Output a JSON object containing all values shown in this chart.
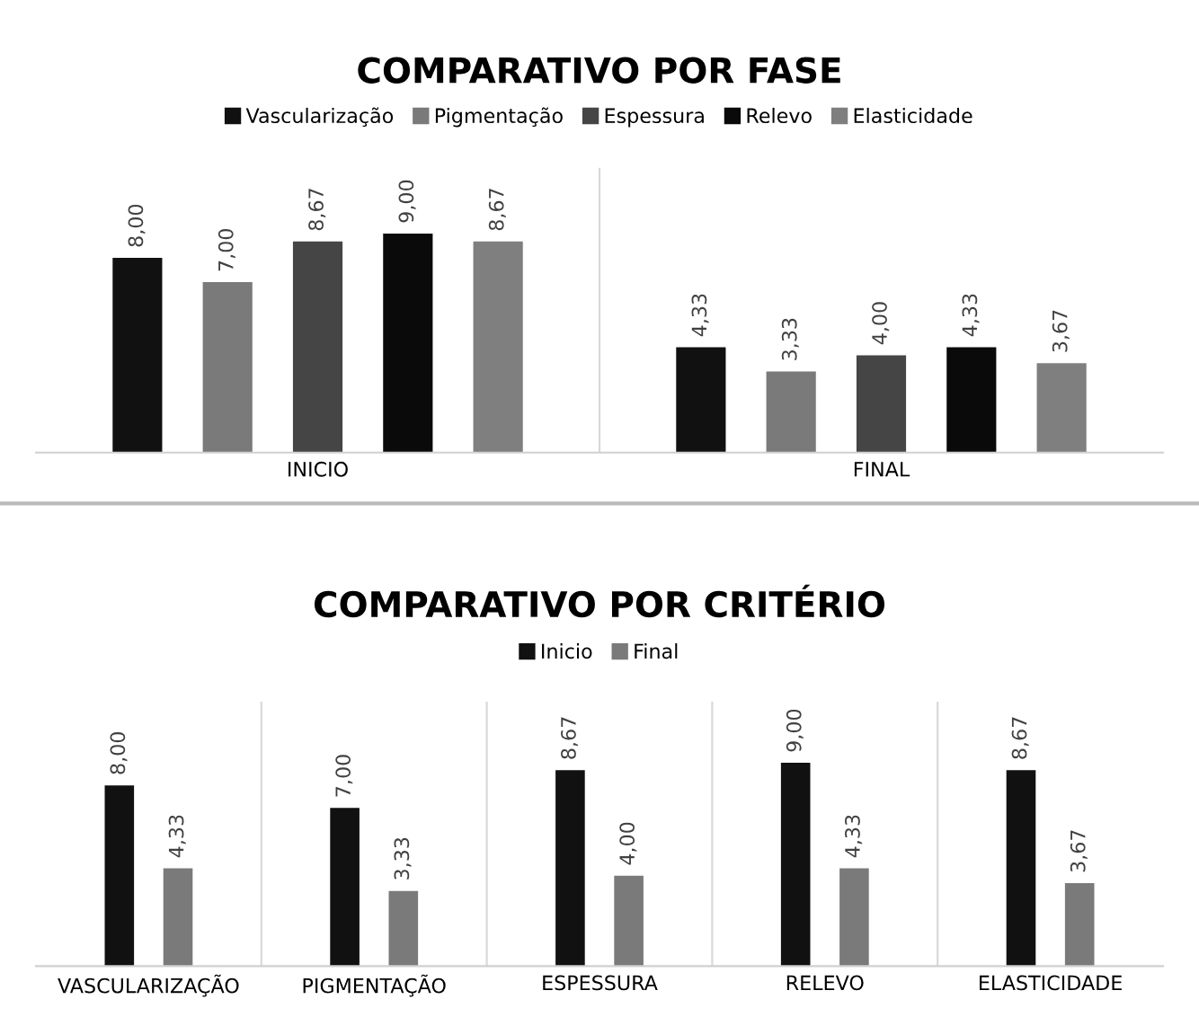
{
  "chart_data": [
    {
      "type": "bar",
      "title": "COMPARATIVO POR FASE",
      "categories": [
        "INICIO",
        "FINAL"
      ],
      "legend": "top",
      "grid": "x",
      "series": [
        {
          "name": "Vascularização",
          "color": "#111111",
          "values": [
            8.0,
            4.33
          ],
          "value_labels": [
            "8,00",
            "4,33"
          ]
        },
        {
          "name": "Pigmentação",
          "color": "#7a7a7a",
          "values": [
            7.0,
            3.33
          ],
          "value_labels": [
            "7,00",
            "3,33"
          ]
        },
        {
          "name": "Espessura",
          "color": "#454545",
          "values": [
            8.67,
            4.0
          ],
          "value_labels": [
            "8,67",
            "4,00"
          ]
        },
        {
          "name": "Relevo",
          "color": "#0a0a0a",
          "values": [
            9.0,
            4.33
          ],
          "value_labels": [
            "9,00",
            "4,33"
          ]
        },
        {
          "name": "Elasticidade",
          "color": "#7f7f7f",
          "values": [
            8.67,
            3.67
          ],
          "value_labels": [
            "8,67",
            "3,67"
          ]
        }
      ]
    },
    {
      "type": "bar",
      "title": "COMPARATIVO POR CRITÉRIO",
      "categories": [
        "VASCULARIZAÇÃO",
        "PIGMENTAÇÃO",
        "ESPESSURA",
        "RELEVO",
        "ELASTICIDADE"
      ],
      "legend": "top",
      "grid": "x",
      "series": [
        {
          "name": "Inicio",
          "color": "#111111",
          "values": [
            8.0,
            7.0,
            8.67,
            9.0,
            8.67
          ],
          "value_labels": [
            "8,00",
            "7,00",
            "8,67",
            "9,00",
            "8,67"
          ]
        },
        {
          "name": "Final",
          "color": "#7a7a7a",
          "values": [
            4.33,
            3.33,
            4.0,
            4.33,
            3.67
          ],
          "value_labels": [
            "4,33",
            "3,33",
            "4,00",
            "4,33",
            "3,67"
          ]
        }
      ]
    }
  ]
}
